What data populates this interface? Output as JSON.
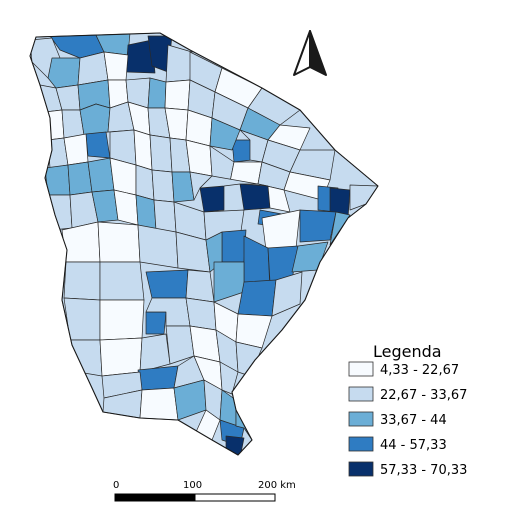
{
  "legend": {
    "title": "Legenda",
    "classes": [
      {
        "label": "4,33 - 22,67",
        "color": "#f7fbff"
      },
      {
        "label": "22,67 - 33,67",
        "color": "#c6dbef"
      },
      {
        "label": "33,67 - 44",
        "color": "#6baed6"
      },
      {
        "label": "44 - 57,33",
        "color": "#2f7cc2"
      },
      {
        "label": "57,33 - 70,33",
        "color": "#08306b"
      }
    ]
  },
  "scale_bar": {
    "labels": [
      "0",
      "100",
      "200 km"
    ]
  },
  "north_arrow": {
    "icon": "north-arrow-icon"
  }
}
